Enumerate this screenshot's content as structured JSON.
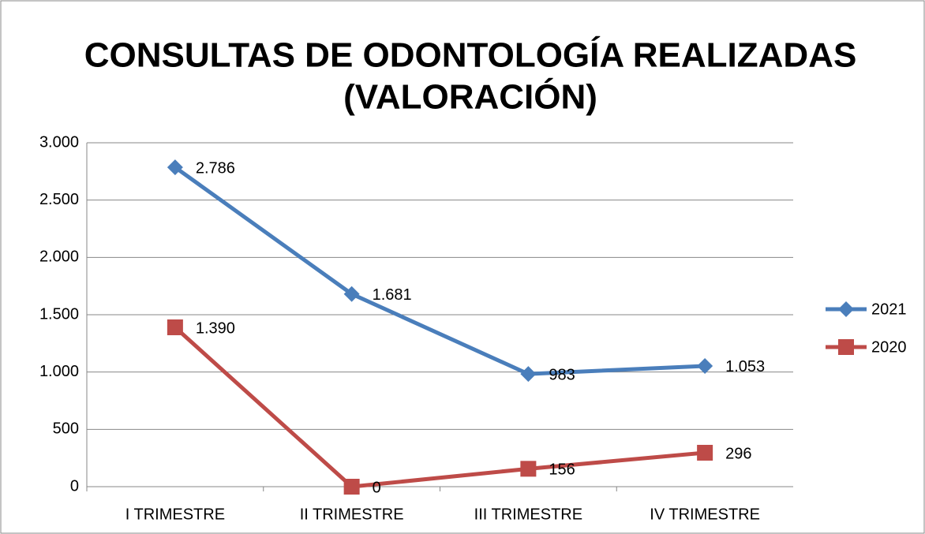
{
  "chart_data": {
    "type": "line",
    "title": [
      "CONSULTAS DE ODONTOLOGÍA REALIZADAS",
      "(VALORACIÓN)"
    ],
    "categories": [
      "I TRIMESTRE",
      "II TRIMESTRE",
      "III TRIMESTRE",
      "IV TRIMESTRE"
    ],
    "series": [
      {
        "name": "2021",
        "color": "#4a7ebb",
        "marker": "diamond",
        "values": [
          2786,
          1681,
          983,
          1053
        ],
        "value_labels": [
          "2.786",
          "1.681",
          "983",
          "1.053"
        ]
      },
      {
        "name": "2020",
        "color": "#be4b48",
        "marker": "square",
        "values": [
          1390,
          0,
          156,
          296
        ],
        "value_labels": [
          "1.390",
          "0",
          "156",
          "296"
        ]
      }
    ],
    "ylim": [
      0,
      3000
    ],
    "yticks": [
      0,
      500,
      {
        "value": 1000,
        "label": "1.000"
      },
      {
        "value": 1500,
        "label": "1.500"
      },
      {
        "value": 2000,
        "label": "2.000"
      },
      {
        "value": 2500,
        "label": "2.500"
      },
      {
        "value": 3000,
        "label": "3.000"
      }
    ],
    "grid": true,
    "legend": "right"
  }
}
